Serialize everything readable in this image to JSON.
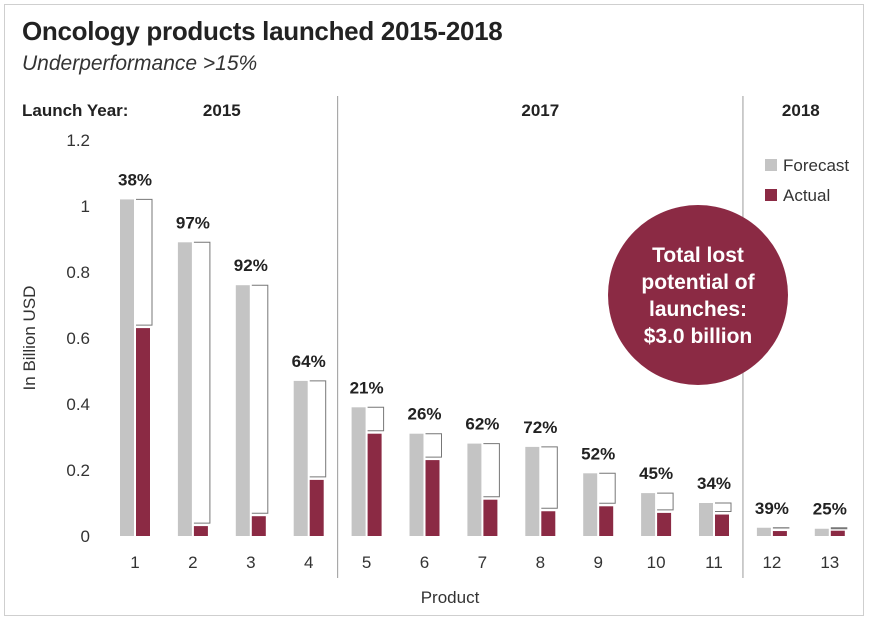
{
  "title": "Oncology products launched 2015-2018",
  "subtitle": "Underperformance >15%",
  "launch_year_label": "Launch Year:",
  "years": [
    {
      "label": "2015",
      "products": [
        1,
        4
      ]
    },
    {
      "label": "2017",
      "products": [
        5,
        11
      ]
    },
    {
      "label": "2018",
      "products": [
        12,
        13
      ]
    }
  ],
  "callout": {
    "lines": [
      "Total lost",
      "potential of",
      "launches:",
      "$3.0 billion"
    ],
    "color": "#8b2a44"
  },
  "colors": {
    "forecast": "#c4c4c4",
    "actual": "#8b2a44",
    "text": "#222222",
    "axis": "#555555"
  },
  "chart_data": {
    "type": "bar",
    "xlabel": "Product",
    "ylabel": "In Billion USD",
    "ylim": [
      0,
      1.2
    ],
    "yticks": [
      0,
      0.2,
      0.4,
      0.6,
      0.8,
      1,
      1.2
    ],
    "ytick_labels": [
      "0",
      "0.2",
      "0.4",
      "0.6",
      "0.8",
      "1",
      "1.2"
    ],
    "categories": [
      "1",
      "2",
      "3",
      "4",
      "5",
      "6",
      "7",
      "8",
      "9",
      "10",
      "11",
      "12",
      "13"
    ],
    "series": [
      {
        "name": "Forecast",
        "values": [
          1.02,
          0.89,
          0.76,
          0.47,
          0.39,
          0.31,
          0.28,
          0.27,
          0.19,
          0.13,
          0.1,
          0.025,
          0.022
        ]
      },
      {
        "name": "Actual",
        "values": [
          0.63,
          0.03,
          0.06,
          0.17,
          0.31,
          0.23,
          0.11,
          0.075,
          0.09,
          0.07,
          0.065,
          0.015,
          0.016
        ]
      }
    ],
    "underperformance_labels": [
      "38%",
      "97%",
      "92%",
      "64%",
      "21%",
      "26%",
      "62%",
      "72%",
      "52%",
      "45%",
      "34%",
      "39%",
      "25%"
    ],
    "legend": [
      "Forecast",
      "Actual"
    ],
    "legend_position": "top-right",
    "grid": false
  }
}
